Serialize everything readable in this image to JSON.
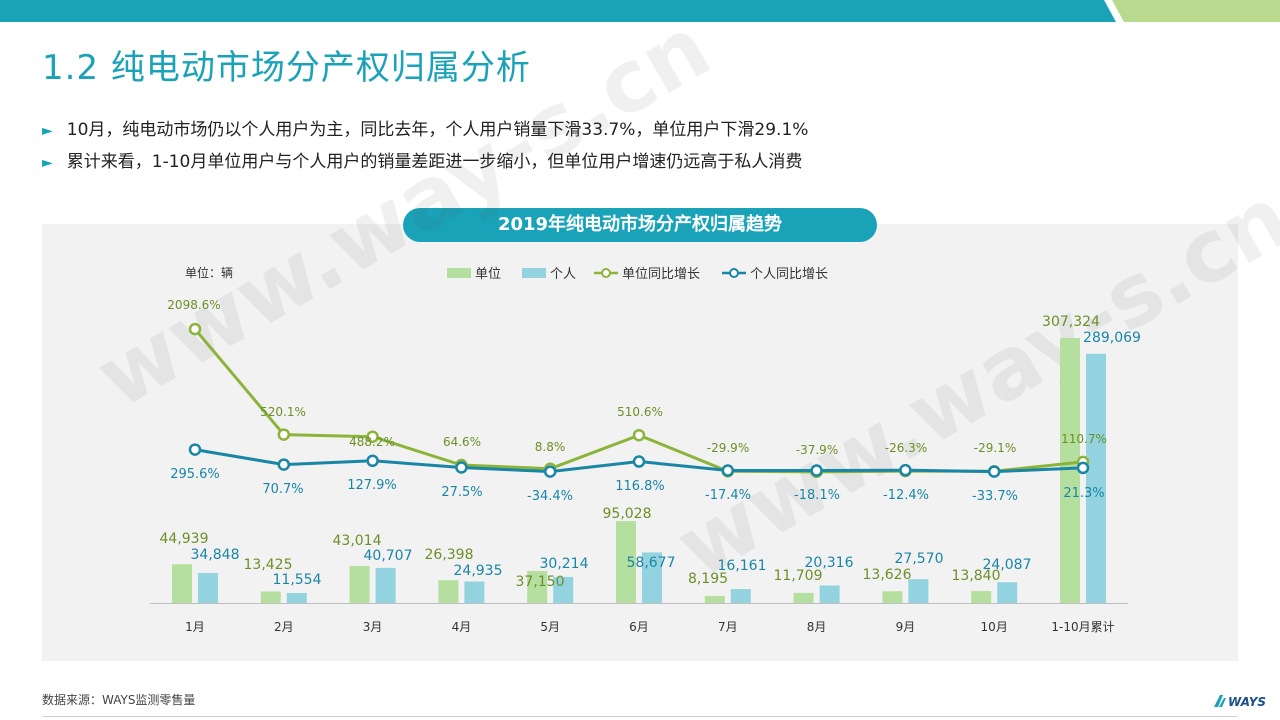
{
  "page": {
    "title": "1.2 纯电动市场分产权归属分析",
    "bullets": [
      "10月，纯电动市场仍以个人用户为主，同比去年，个人用户销量下滑33.7%，单位用户下滑29.1%",
      "累计来看，1-10月单位用户与个人用户的销量差距进一步缩小，但单位用户增速仍远高于私人消费"
    ],
    "source": "数据来源：WAYS监测零售量",
    "logo_text": "WAYS",
    "watermark_text": "www.way-s.cn"
  },
  "colors": {
    "accent": "#1aa3b8",
    "header_green": "#b8d98e",
    "bar_unit": "#b5df9f",
    "bar_personal": "#93d3df",
    "line_unit": "#8db43a",
    "line_personal": "#1a86a6",
    "label_unit": "#6e8f28",
    "label_personal": "#1a86a6"
  },
  "chart_data": {
    "type": "bar+line",
    "title": "2019年纯电动市场分产权归属趋势",
    "unit_label": "单位：辆",
    "categories": [
      "1月",
      "2月",
      "3月",
      "4月",
      "5月",
      "6月",
      "7月",
      "8月",
      "9月",
      "10月",
      "1-10月累计"
    ],
    "bar_series": [
      {
        "name": "单位",
        "values": [
          44939,
          13425,
          43014,
          26398,
          37150,
          95028,
          8195,
          11709,
          13626,
          13840,
          307324
        ],
        "labels": [
          "44,939",
          "13,425",
          "43,014",
          "26,398",
          "37,150",
          "95,028",
          "8,195",
          "11,709",
          "13,626",
          "13,840",
          "307,324"
        ]
      },
      {
        "name": "个人",
        "values": [
          34848,
          11554,
          40707,
          24935,
          30214,
          58677,
          16161,
          20316,
          27570,
          24087,
          289069
        ],
        "labels": [
          "34,848",
          "11,554",
          "40,707",
          "24,935",
          "30,214",
          "58,677",
          "16,161",
          "20,316",
          "27,570",
          "24,087",
          "289,069"
        ]
      }
    ],
    "line_series": [
      {
        "name": "单位同比增长",
        "values": [
          2098.6,
          520.1,
          488.2,
          64.6,
          8.8,
          510.6,
          -29.9,
          -37.9,
          -26.3,
          -29.1,
          110.7
        ],
        "labels": [
          "2098.6%",
          "520.1%",
          "488.2%",
          "64.6%",
          "8.8%",
          "510.6%",
          "-29.9%",
          "-37.9%",
          "-26.3%",
          "-29.1%",
          "110.7%"
        ]
      },
      {
        "name": "个人同比增长",
        "values": [
          295.6,
          70.7,
          127.9,
          27.5,
          -34.4,
          116.8,
          -17.4,
          -18.1,
          -12.4,
          -33.7,
          21.3
        ],
        "labels": [
          "295.6%",
          "70.7%",
          "127.9%",
          "27.5%",
          "-34.4%",
          "116.8%",
          "-17.4%",
          "-18.1%",
          "-12.4%",
          "-33.7%",
          "21.3%"
        ]
      }
    ],
    "legend_position": "top-center",
    "grid": false
  }
}
